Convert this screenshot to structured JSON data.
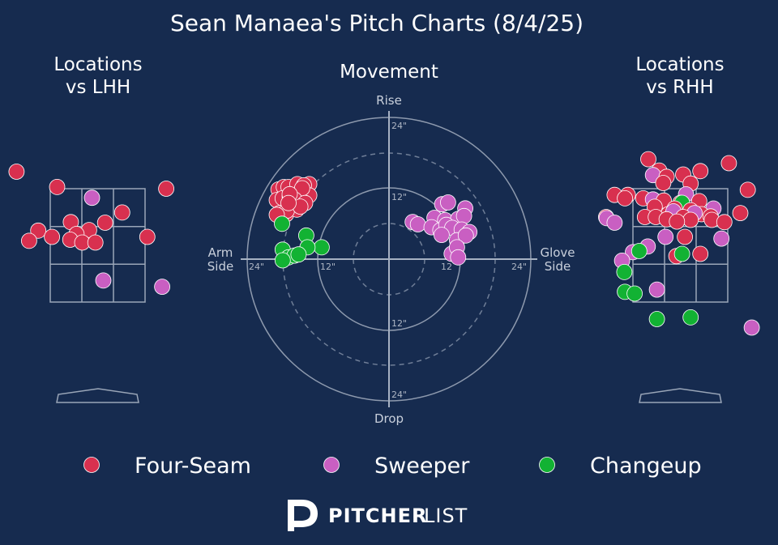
{
  "chart_data": {
    "type": "scatter",
    "title": "Sean Manaea's Pitch Charts (8/4/25)",
    "colors": {
      "Four-Seam": "#d8304f",
      "Sweeper": "#c95fc2",
      "Changeup": "#12b233",
      "background": "#162b4f"
    },
    "legend": {
      "placement": "bottom",
      "entries": [
        "Four-Seam",
        "Sweeper",
        "Changeup"
      ]
    },
    "panels": [
      {
        "key": "lhh",
        "title_line1": "Locations",
        "title_line2": "vs LHH",
        "grid": "3x3 strike zone",
        "points": [
          {
            "pitch": "Four-Seam",
            "x": -1.42,
            "y": 3.8
          },
          {
            "pitch": "Four-Seam",
            "x": -0.71,
            "y": 3.53
          },
          {
            "pitch": "Four-Seam",
            "x": 1.2,
            "y": 3.5
          },
          {
            "pitch": "Sweeper",
            "x": -0.1,
            "y": 3.34
          },
          {
            "pitch": "Four-Seam",
            "x": 0.43,
            "y": 3.08
          },
          {
            "pitch": "Four-Seam",
            "x": -0.47,
            "y": 2.91
          },
          {
            "pitch": "Four-Seam",
            "x": 0.13,
            "y": 2.9
          },
          {
            "pitch": "Four-Seam",
            "x": -1.04,
            "y": 2.76
          },
          {
            "pitch": "Four-Seam",
            "x": -0.15,
            "y": 2.77
          },
          {
            "pitch": "Four-Seam",
            "x": -0.37,
            "y": 2.7
          },
          {
            "pitch": "Four-Seam",
            "x": -0.8,
            "y": 2.65
          },
          {
            "pitch": "Four-Seam",
            "x": -0.48,
            "y": 2.6
          },
          {
            "pitch": "Four-Seam",
            "x": 0.87,
            "y": 2.65
          },
          {
            "pitch": "Four-Seam",
            "x": -1.2,
            "y": 2.58
          },
          {
            "pitch": "Four-Seam",
            "x": -0.27,
            "y": 2.55
          },
          {
            "pitch": "Four-Seam",
            "x": -0.04,
            "y": 2.55
          },
          {
            "pitch": "Sweeper",
            "x": 0.1,
            "y": 1.88
          },
          {
            "pitch": "Sweeper",
            "x": 1.13,
            "y": 1.77
          }
        ]
      },
      {
        "key": "rhh",
        "title_line1": "Locations",
        "title_line2": "vs RHH",
        "grid": "3x3 strike zone",
        "points": [
          {
            "pitch": "Four-Seam",
            "x": -0.56,
            "y": 4.02
          },
          {
            "pitch": "Four-Seam",
            "x": 0.85,
            "y": 3.95
          },
          {
            "pitch": "Four-Seam",
            "x": -0.37,
            "y": 3.82
          },
          {
            "pitch": "Four-Seam",
            "x": 0.35,
            "y": 3.81
          },
          {
            "pitch": "Four-Seam",
            "x": 0.05,
            "y": 3.75
          },
          {
            "pitch": "Sweeper",
            "x": -0.48,
            "y": 3.74
          },
          {
            "pitch": "Four-Seam",
            "x": -0.24,
            "y": 3.71
          },
          {
            "pitch": "Four-Seam",
            "x": -0.3,
            "y": 3.6
          },
          {
            "pitch": "Four-Seam",
            "x": 0.18,
            "y": 3.59
          },
          {
            "pitch": "Four-Seam",
            "x": 1.18,
            "y": 3.48
          },
          {
            "pitch": "Four-Seam",
            "x": -1.15,
            "y": 3.39
          },
          {
            "pitch": "Four-Seam",
            "x": -0.92,
            "y": 3.39
          },
          {
            "pitch": "Sweeper",
            "x": 0.1,
            "y": 3.4
          },
          {
            "pitch": "Four-Seam",
            "x": -0.97,
            "y": 3.33
          },
          {
            "pitch": "Four-Seam",
            "x": -0.65,
            "y": 3.33
          },
          {
            "pitch": "Sweeper",
            "x": -0.48,
            "y": 3.31
          },
          {
            "pitch": "Four-Seam",
            "x": -0.29,
            "y": 3.29
          },
          {
            "pitch": "Four-Seam",
            "x": 0.33,
            "y": 3.28
          },
          {
            "pitch": "Four-Seam",
            "x": 0.0,
            "y": 3.25
          },
          {
            "pitch": "Changeup",
            "x": 0.03,
            "y": 3.25
          },
          {
            "pitch": "Four-Seam",
            "x": -0.45,
            "y": 3.18
          },
          {
            "pitch": "Four-Seam",
            "x": -0.1,
            "y": 3.15
          },
          {
            "pitch": "Four-Seam",
            "x": 0.18,
            "y": 3.12
          },
          {
            "pitch": "Sweeper",
            "x": 0.58,
            "y": 3.15
          },
          {
            "pitch": "Four-Seam",
            "x": 0.37,
            "y": 3.05
          },
          {
            "pitch": "Four-Seam",
            "x": -0.21,
            "y": 3.05
          },
          {
            "pitch": "Sweeper",
            "x": -0.12,
            "y": 3.1
          },
          {
            "pitch": "Sweeper",
            "x": 0.25,
            "y": 3.07
          },
          {
            "pitch": "Four-Seam",
            "x": -1.3,
            "y": 3.0
          },
          {
            "pitch": "Four-Seam",
            "x": -0.62,
            "y": 3.0
          },
          {
            "pitch": "Four-Seam",
            "x": -0.43,
            "y": 3.0
          },
          {
            "pitch": "Four-Seam",
            "x": 0.05,
            "y": 3.0
          },
          {
            "pitch": "Four-Seam",
            "x": 0.53,
            "y": 3.01
          },
          {
            "pitch": "Four-Seam",
            "x": 1.05,
            "y": 3.07
          },
          {
            "pitch": "Sweeper",
            "x": -1.29,
            "y": 2.98
          },
          {
            "pitch": "Four-Seam",
            "x": -0.24,
            "y": 2.96
          },
          {
            "pitch": "Four-Seam",
            "x": 0.18,
            "y": 2.95
          },
          {
            "pitch": "Four-Seam",
            "x": 0.55,
            "y": 2.95
          },
          {
            "pitch": "Four-Seam",
            "x": -0.06,
            "y": 2.92
          },
          {
            "pitch": "Sweeper",
            "x": -1.15,
            "y": 2.9
          },
          {
            "pitch": "Four-Seam",
            "x": 0.77,
            "y": 2.91
          },
          {
            "pitch": "Sweeper",
            "x": 0.72,
            "y": 2.62
          },
          {
            "pitch": "Sweeper",
            "x": -0.26,
            "y": 2.65
          },
          {
            "pitch": "Four-Seam",
            "x": 0.08,
            "y": 2.65
          },
          {
            "pitch": "Sweeper",
            "x": -0.57,
            "y": 2.48
          },
          {
            "pitch": "Sweeper",
            "x": -0.83,
            "y": 2.38
          },
          {
            "pitch": "Changeup",
            "x": -0.72,
            "y": 2.4
          },
          {
            "pitch": "Four-Seam",
            "x": -0.07,
            "y": 2.31
          },
          {
            "pitch": "Changeup",
            "x": 0.03,
            "y": 2.35
          },
          {
            "pitch": "Four-Seam",
            "x": 0.35,
            "y": 2.35
          },
          {
            "pitch": "Sweeper",
            "x": -1.02,
            "y": 2.23
          },
          {
            "pitch": "Changeup",
            "x": -0.98,
            "y": 2.03
          },
          {
            "pitch": "Changeup",
            "x": -0.97,
            "y": 1.68
          },
          {
            "pitch": "Changeup",
            "x": -0.8,
            "y": 1.65
          },
          {
            "pitch": "Sweeper",
            "x": -0.41,
            "y": 1.72
          },
          {
            "pitch": "Changeup",
            "x": 0.18,
            "y": 1.23
          },
          {
            "pitch": "Changeup",
            "x": -0.41,
            "y": 1.2
          },
          {
            "pitch": "Sweeper",
            "x": 1.25,
            "y": 1.05
          }
        ]
      }
    ],
    "movement": {
      "title": "Movement",
      "top_label": "Rise",
      "bottom_label": "Drop",
      "left_label_line1": "Arm",
      "left_label_line2": "Side",
      "right_label_line1": "Glove",
      "right_label_line2": "Side",
      "ring_values": [
        6,
        12,
        18,
        24
      ],
      "ring_labels": {
        "top_12": "12\"",
        "top_24": "24\"",
        "bottom_12": "12\"",
        "bottom_24": "24\"",
        "left_12": "12\"",
        "left_24": "24\"",
        "right_12": "12",
        "right_24": "24\""
      },
      "points": [
        {
          "pitch": "Four-Seam",
          "x": -18.7,
          "y": 11.8
        },
        {
          "pitch": "Four-Seam",
          "x": -17.8,
          "y": 12.2
        },
        {
          "pitch": "Four-Seam",
          "x": -17.0,
          "y": 12.2
        },
        {
          "pitch": "Four-Seam",
          "x": -15.5,
          "y": 12.7
        },
        {
          "pitch": "Four-Seam",
          "x": -13.5,
          "y": 12.7
        },
        {
          "pitch": "Four-Seam",
          "x": -14.4,
          "y": 12.5
        },
        {
          "pitch": "Four-Seam",
          "x": -19.0,
          "y": 10.0
        },
        {
          "pitch": "Four-Seam",
          "x": -18.0,
          "y": 10.3
        },
        {
          "pitch": "Four-Seam",
          "x": -16.8,
          "y": 10.6
        },
        {
          "pitch": "Four-Seam",
          "x": -15.6,
          "y": 10.8
        },
        {
          "pitch": "Four-Seam",
          "x": -13.5,
          "y": 10.8
        },
        {
          "pitch": "Four-Seam",
          "x": -14.7,
          "y": 12.0
        },
        {
          "pitch": "Four-Seam",
          "x": -16.0,
          "y": 10.1
        },
        {
          "pitch": "Four-Seam",
          "x": -14.2,
          "y": 9.5
        },
        {
          "pitch": "Four-Seam",
          "x": -17.4,
          "y": 7.6
        },
        {
          "pitch": "Four-Seam",
          "x": -18.5,
          "y": 7.8
        },
        {
          "pitch": "Four-Seam",
          "x": -15.6,
          "y": 8.4
        },
        {
          "pitch": "Four-Seam",
          "x": -17.3,
          "y": 8.2
        },
        {
          "pitch": "Four-Seam",
          "x": -16.8,
          "y": 11.0
        },
        {
          "pitch": "Four-Seam",
          "x": -15.0,
          "y": 8.9
        },
        {
          "pitch": "Four-Seam",
          "x": -17.0,
          "y": 9.5
        },
        {
          "pitch": "Four-Seam",
          "x": -19.0,
          "y": 7.5
        },
        {
          "pitch": "Changeup",
          "x": -18.1,
          "y": 6.0
        },
        {
          "pitch": "Changeup",
          "x": -14.0,
          "y": 4.0
        },
        {
          "pitch": "Changeup",
          "x": -11.4,
          "y": 2.0
        },
        {
          "pitch": "Changeup",
          "x": -13.8,
          "y": 2.0
        },
        {
          "pitch": "Changeup",
          "x": -18.0,
          "y": 1.6
        },
        {
          "pitch": "Changeup",
          "x": -17.0,
          "y": 0.3
        },
        {
          "pitch": "Changeup",
          "x": -16.0,
          "y": 0.6
        },
        {
          "pitch": "Changeup",
          "x": -15.3,
          "y": 0.8
        },
        {
          "pitch": "Changeup",
          "x": -18.0,
          "y": -0.2
        },
        {
          "pitch": "Sweeper",
          "x": 9.0,
          "y": 9.3
        },
        {
          "pitch": "Sweeper",
          "x": 10.0,
          "y": 9.6
        },
        {
          "pitch": "Sweeper",
          "x": 12.9,
          "y": 8.6
        },
        {
          "pitch": "Sweeper",
          "x": 7.7,
          "y": 7.0
        },
        {
          "pitch": "Sweeper",
          "x": 9.5,
          "y": 6.6
        },
        {
          "pitch": "Sweeper",
          "x": 11.7,
          "y": 6.8
        },
        {
          "pitch": "Sweeper",
          "x": 12.7,
          "y": 7.3
        },
        {
          "pitch": "Sweeper",
          "x": 4.0,
          "y": 6.3
        },
        {
          "pitch": "Sweeper",
          "x": 4.9,
          "y": 5.9
        },
        {
          "pitch": "Sweeper",
          "x": 7.2,
          "y": 5.4
        },
        {
          "pitch": "Sweeper",
          "x": 8.7,
          "y": 4.9
        },
        {
          "pitch": "Sweeper",
          "x": 9.7,
          "y": 5.8
        },
        {
          "pitch": "Sweeper",
          "x": 10.7,
          "y": 5.3
        },
        {
          "pitch": "Sweeper",
          "x": 12.3,
          "y": 5.0
        },
        {
          "pitch": "Sweeper",
          "x": 13.6,
          "y": 4.6
        },
        {
          "pitch": "Sweeper",
          "x": 8.9,
          "y": 4.1
        },
        {
          "pitch": "Sweeper",
          "x": 11.5,
          "y": 3.2
        },
        {
          "pitch": "Sweeper",
          "x": 13.0,
          "y": 4.0
        },
        {
          "pitch": "Sweeper",
          "x": 10.6,
          "y": 0.9
        },
        {
          "pitch": "Sweeper",
          "x": 11.5,
          "y": 2.0
        },
        {
          "pitch": "Sweeper",
          "x": 11.7,
          "y": 0.3
        }
      ]
    }
  },
  "brand": {
    "bold": "PITCHER",
    "light": "LIST"
  }
}
